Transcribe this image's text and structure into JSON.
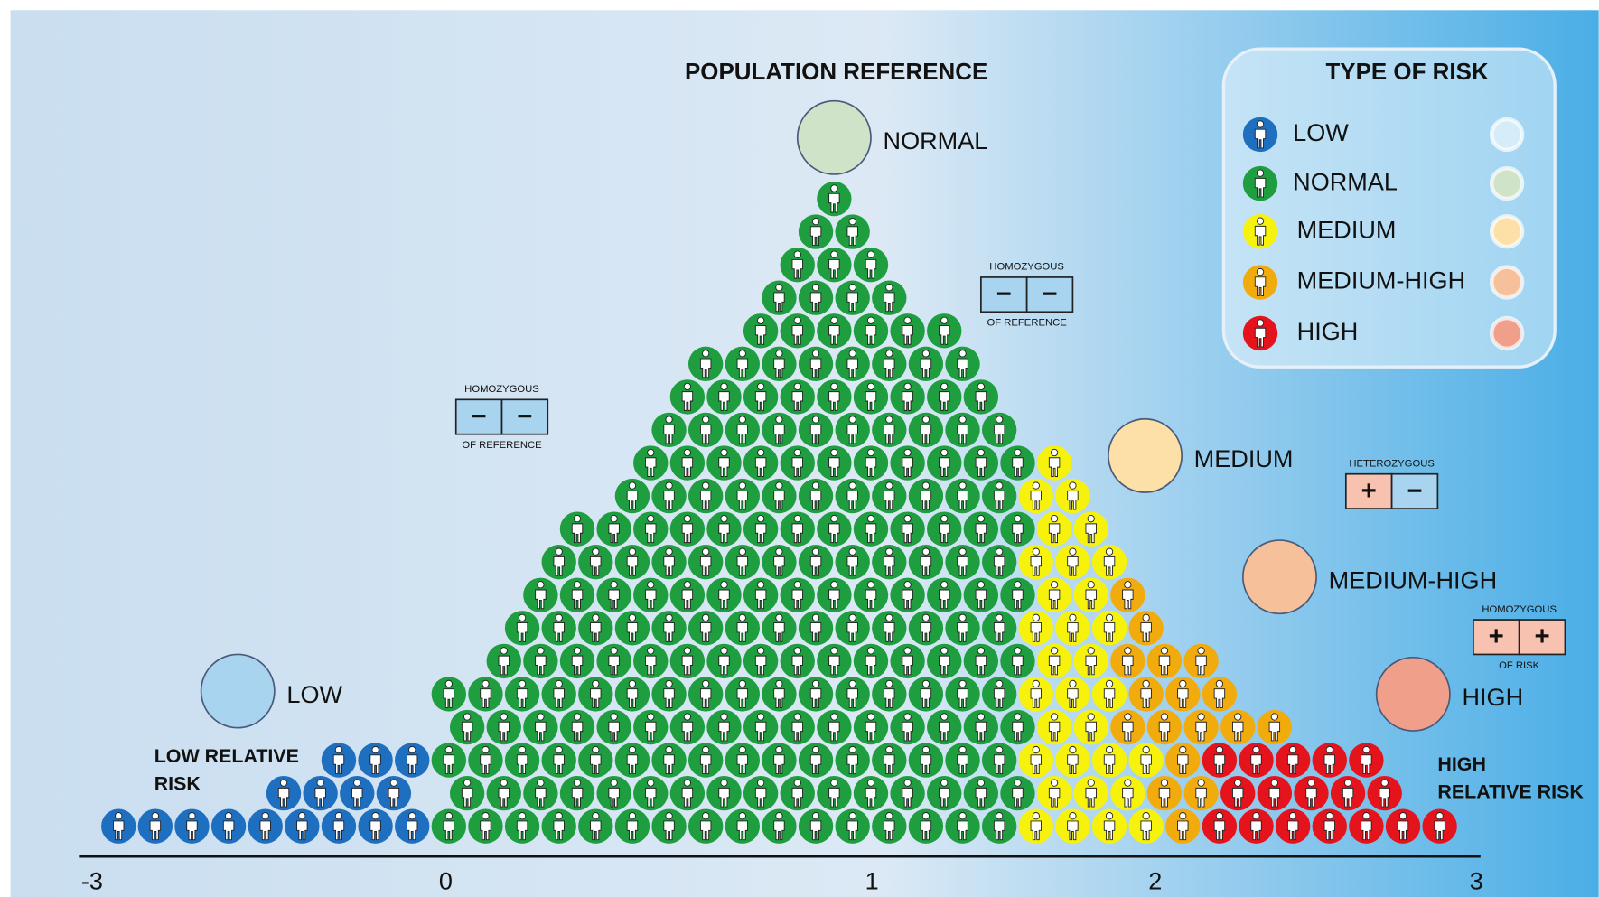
{
  "title": "POPULATION REFERENCE",
  "legend": {
    "title": "TYPE OF RISK",
    "items": [
      "LOW",
      "NORMAL",
      "MEDIUM",
      "MEDIUM-HIGH",
      "HIGH"
    ]
  },
  "groups": [
    {
      "label": "NORMAL"
    },
    {
      "label": "LOW"
    },
    {
      "label": "MEDIUM"
    },
    {
      "label": "MEDIUM-HIGH"
    },
    {
      "label": "HIGH"
    }
  ],
  "genotypes": [
    {
      "top": "HOMOZYGOUS",
      "left": "−",
      "right": "−",
      "bottom": "OF REFERENCE"
    },
    {
      "top": "HOMOZYGOUS",
      "left": "−",
      "right": "−",
      "bottom": "OF REFERENCE"
    },
    {
      "top": "HETEROZYGOUS",
      "left": "+",
      "right": "−"
    },
    {
      "top": "HOMOZYGOUS",
      "left": "+",
      "right": "+",
      "bottom": "OF RISK"
    }
  ],
  "side_labels": [
    {
      "lines": [
        "LOW RELATIVE",
        "RISK"
      ]
    },
    {
      "lines": [
        "HIGH",
        "RELATIVE RISK"
      ]
    }
  ],
  "axis": {
    "ticks": [
      -3,
      0,
      1,
      2,
      3
    ]
  }
}
